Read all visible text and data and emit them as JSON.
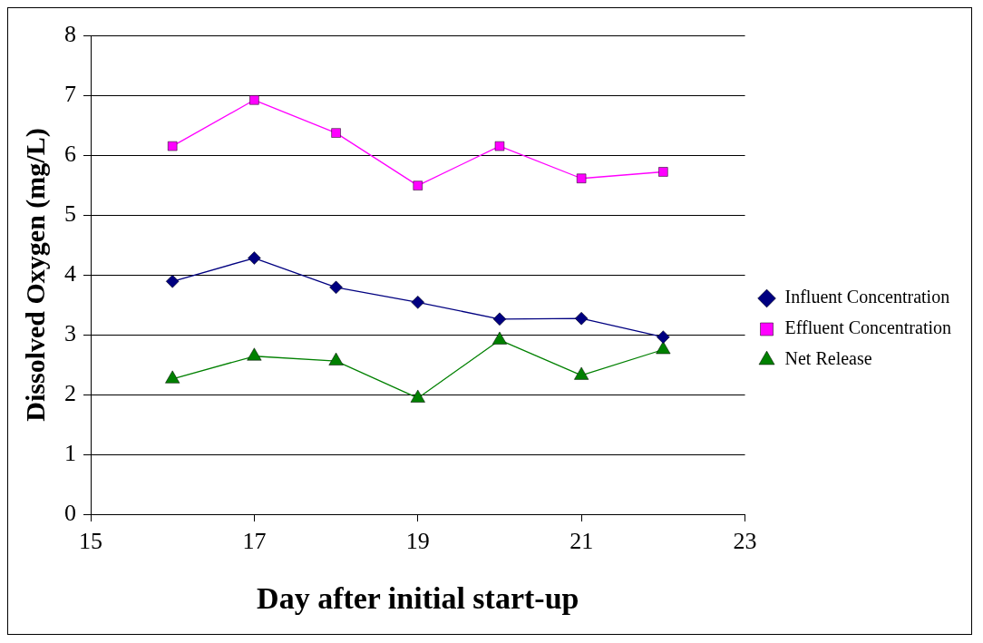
{
  "chart_data": {
    "type": "line",
    "xlabel": "Day after initial start-up",
    "ylabel": "Dissolved Oxygen (mg/L)",
    "x": [
      16,
      17,
      18,
      19,
      20,
      21,
      22
    ],
    "series": [
      {
        "name": "Influent Concentration",
        "color": "#000080",
        "marker": "diamond",
        "values": [
          3.89,
          4.28,
          3.79,
          3.54,
          3.26,
          3.27,
          2.96
        ]
      },
      {
        "name": "Effluent Concentration",
        "color": "#ff00ff",
        "marker": "square",
        "values": [
          6.15,
          6.92,
          6.37,
          5.49,
          6.15,
          5.61,
          5.72
        ]
      },
      {
        "name": "Net Release",
        "color": "#008000",
        "marker": "triangle",
        "values": [
          2.26,
          2.64,
          2.56,
          1.94,
          2.91,
          2.32,
          2.75
        ]
      }
    ],
    "xlim": [
      15,
      23
    ],
    "xticks": [
      15,
      17,
      19,
      21,
      23
    ],
    "ylim": [
      0,
      8
    ],
    "yticks": [
      0,
      1,
      2,
      3,
      4,
      5,
      6,
      7,
      8
    ],
    "grid": "y",
    "legend": "right"
  }
}
